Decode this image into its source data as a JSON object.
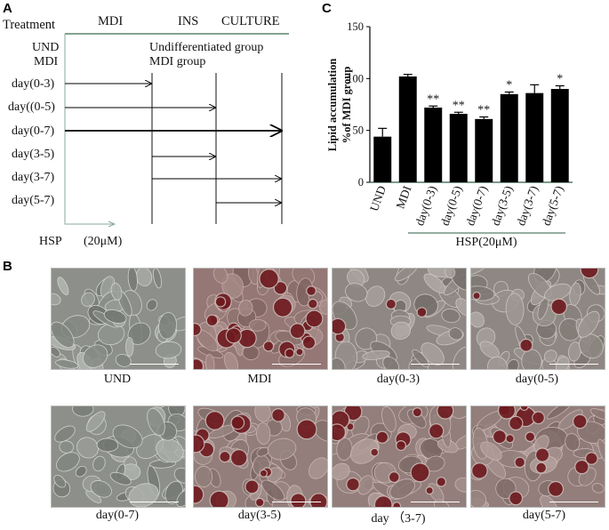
{
  "panels": {
    "a": "A",
    "b": "B",
    "c": "C"
  },
  "panel_a": {
    "header": {
      "treatment": "Treatment",
      "mdi": "MDI",
      "ins": "INS",
      "culture": "CULTURE"
    },
    "rows": [
      {
        "label": "UND"
      },
      {
        "label": "MDI"
      },
      {
        "label": "day(0-3)"
      },
      {
        "label": "day((0-5)"
      },
      {
        "label": "day(0-7)"
      },
      {
        "label": "day(3-5)"
      },
      {
        "label": "day(3-7)"
      },
      {
        "label": "day(5-7)"
      }
    ],
    "group_notes": {
      "und": "Undifferentiated group",
      "mdi": "MDI group"
    },
    "hsp_label": "HSP",
    "hsp_dose": "(20μM)",
    "arrow_color": "#3b6b4f"
  },
  "chart_data": {
    "type": "bar",
    "categories": [
      "UND",
      "MDI",
      "day(0-3)",
      "day(0-5)",
      "day(0-7)",
      "day(3-5)",
      "day(3-7)",
      "day(5-7)"
    ],
    "values": [
      44,
      102,
      72,
      66,
      61,
      85,
      86,
      90
    ],
    "errors": [
      8,
      2,
      1.5,
      1.5,
      2,
      2,
      8,
      3
    ],
    "significance": [
      "",
      "",
      "**",
      "**",
      "**",
      "*",
      "",
      "*"
    ],
    "ylabel_line1": "Lipid accumulation",
    "ylabel_line2": "%of MDI group",
    "ylim": [
      0,
      150
    ],
    "yticks": [
      0,
      50,
      100,
      150
    ],
    "xgroup_label": "HSP(20μM)",
    "bar_color": "#000000",
    "axis_color": "#2e5e46"
  },
  "panel_b": {
    "images": [
      {
        "caption": "UND",
        "stain": "none"
      },
      {
        "caption": "MDI",
        "stain": "heavy"
      },
      {
        "caption": "day(0-3)",
        "stain": "light"
      },
      {
        "caption": "day(0-5)",
        "stain": "light"
      },
      {
        "caption": "day(0-7)",
        "stain": "none"
      },
      {
        "caption": "day(3-5)",
        "stain": "medium"
      },
      {
        "caption": "day  （3-7)",
        "stain": "medium"
      },
      {
        "caption": "day(5-7)",
        "stain": "medium"
      }
    ]
  }
}
